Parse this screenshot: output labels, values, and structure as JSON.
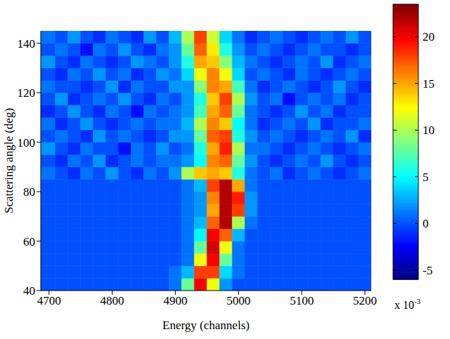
{
  "chart_data": {
    "type": "heatmap",
    "x_label": "Energy (channels)",
    "y_label": "Scattering angle (deg)",
    "xlim": [
      4687,
      5210
    ],
    "xticks": [
      4700,
      4800,
      4900,
      5000,
      5100,
      5200
    ],
    "ylim": [
      40,
      145
    ],
    "yticks": [
      40,
      60,
      80,
      100,
      120,
      140
    ],
    "x_edges": [
      4687,
      4710,
      4730,
      4750,
      4770,
      4790,
      4810,
      4830,
      4850,
      4870,
      4890,
      4910,
      4930,
      4950,
      4970,
      4990,
      5010,
      5030,
      5050,
      5070,
      5090,
      5110,
      5130,
      5150,
      5170,
      5190,
      5210
    ],
    "y_edges": [
      40,
      45,
      50,
      55,
      60,
      65,
      70,
      75,
      80,
      85,
      90,
      95,
      100,
      105,
      110,
      115,
      120,
      125,
      130,
      135,
      140,
      145
    ],
    "cells": [
      [
        0,
        0,
        0,
        0,
        0,
        0,
        0,
        0,
        0,
        0,
        1,
        8,
        20,
        12,
        2,
        0,
        0,
        0,
        0,
        0,
        0,
        0,
        0,
        0,
        0,
        0
      ],
      [
        0,
        0,
        0,
        0,
        0,
        0,
        0,
        0,
        0,
        0,
        1,
        3,
        18,
        18,
        4,
        1,
        0,
        0,
        0,
        0,
        0,
        0,
        0,
        0,
        0,
        0
      ],
      [
        0,
        0,
        0,
        0,
        0,
        0,
        0,
        0,
        0,
        0,
        0,
        1,
        12,
        20,
        8,
        1,
        0,
        0,
        0,
        0,
        0,
        0,
        0,
        0,
        0,
        0
      ],
      [
        0,
        0,
        0,
        0,
        0,
        0,
        0,
        0,
        0,
        0,
        0,
        1,
        8,
        21,
        12,
        1,
        0,
        0,
        0,
        0,
        0,
        0,
        0,
        0,
        0,
        0
      ],
      [
        0,
        0,
        0,
        0,
        0,
        0,
        0,
        0,
        0,
        0,
        0,
        1,
        5,
        20,
        17,
        3,
        0,
        0,
        0,
        0,
        0,
        0,
        0,
        0,
        0,
        0
      ],
      [
        0,
        0,
        0,
        0,
        0,
        0,
        0,
        0,
        0,
        0,
        0,
        1,
        3,
        17,
        22,
        10,
        1,
        0,
        0,
        0,
        0,
        0,
        0,
        0,
        0,
        0
      ],
      [
        0,
        0,
        0,
        0,
        0,
        0,
        0,
        0,
        0,
        0,
        0,
        1,
        2,
        15,
        22,
        18,
        2,
        0,
        0,
        0,
        0,
        0,
        0,
        0,
        0,
        0
      ],
      [
        0,
        0,
        0,
        0,
        0,
        0,
        0,
        0,
        0,
        0,
        0,
        1,
        2,
        16,
        22,
        19,
        2,
        0,
        0,
        0,
        0,
        0,
        0,
        0,
        0,
        0
      ],
      [
        0,
        0,
        0,
        0,
        0,
        0,
        0,
        0,
        0,
        0,
        0,
        1,
        3,
        18,
        22,
        15,
        1,
        0,
        0,
        0,
        0,
        0,
        0,
        0,
        0,
        0
      ],
      [
        1,
        0,
        -1,
        1,
        0,
        2,
        0,
        -1,
        1,
        0,
        2,
        10,
        14,
        15,
        14,
        6,
        1,
        0,
        1,
        -1,
        0,
        1,
        0,
        -1,
        0,
        1
      ],
      [
        0,
        -1,
        1,
        0,
        2,
        -1,
        0,
        1,
        0,
        1,
        1,
        2,
        5,
        16,
        17,
        8,
        2,
        0,
        -1,
        0,
        1,
        0,
        2,
        0,
        -1,
        0
      ],
      [
        2,
        0,
        -1,
        1,
        0,
        0,
        -2,
        1,
        0,
        2,
        0,
        1,
        6,
        15,
        19,
        10,
        1,
        1,
        0,
        -1,
        0,
        1,
        0,
        -1,
        0,
        1
      ],
      [
        0,
        1,
        0,
        -1,
        2,
        0,
        1,
        0,
        -1,
        0,
        2,
        2,
        8,
        17,
        18,
        6,
        2,
        0,
        1,
        0,
        -1,
        0,
        1,
        0,
        2,
        -1
      ],
      [
        1,
        -1,
        0,
        2,
        0,
        -1,
        0,
        1,
        0,
        1,
        1,
        3,
        10,
        16,
        14,
        5,
        1,
        -1,
        0,
        1,
        0,
        2,
        -1,
        0,
        0,
        1
      ],
      [
        -1,
        0,
        2,
        0,
        -1,
        1,
        0,
        -2,
        1,
        0,
        1,
        2,
        7,
        15,
        17,
        8,
        1,
        0,
        -1,
        0,
        2,
        0,
        1,
        -1,
        0,
        0
      ],
      [
        0,
        2,
        -1,
        0,
        1,
        0,
        2,
        0,
        -1,
        1,
        0,
        2,
        6,
        14,
        18,
        10,
        2,
        0,
        1,
        -2,
        0,
        1,
        0,
        1,
        -1,
        0
      ],
      [
        1,
        0,
        0,
        -1,
        0,
        2,
        -1,
        1,
        0,
        0,
        2,
        2,
        9,
        16,
        15,
        7,
        1,
        -1,
        0,
        1,
        0,
        -1,
        0,
        2,
        0,
        -1
      ],
      [
        0,
        -1,
        1,
        0,
        2,
        0,
        1,
        -1,
        0,
        2,
        1,
        4,
        12,
        16,
        12,
        4,
        0,
        1,
        0,
        -1,
        1,
        0,
        -1,
        0,
        1,
        0
      ],
      [
        2,
        0,
        -1,
        1,
        0,
        -1,
        0,
        2,
        1,
        0,
        2,
        6,
        15,
        14,
        9,
        3,
        1,
        0,
        -1,
        0,
        1,
        0,
        2,
        -1,
        0,
        1
      ],
      [
        0,
        1,
        0,
        -2,
        1,
        0,
        2,
        0,
        -1,
        1,
        2,
        8,
        17,
        13,
        6,
        2,
        0,
        1,
        0,
        -1,
        0,
        1,
        0,
        0,
        -1,
        0
      ],
      [
        1,
        0,
        2,
        0,
        -1,
        1,
        0,
        -1,
        2,
        0,
        3,
        10,
        18,
        11,
        4,
        1,
        -1,
        0,
        1,
        0,
        -1,
        0,
        1,
        0,
        2,
        0
      ]
    ],
    "colorbar": {
      "range": [
        -6,
        23.5
      ],
      "ticks": [
        -5,
        0,
        5,
        10,
        15,
        20
      ],
      "label": {
        "base": "x 10",
        "exponent": "-3"
      }
    }
  }
}
